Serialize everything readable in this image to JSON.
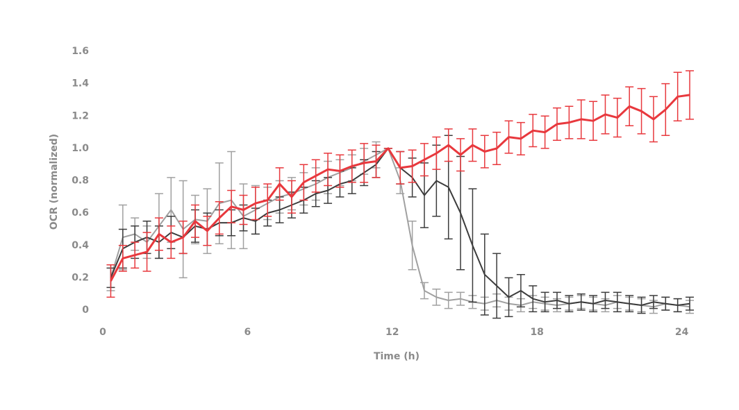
{
  "chart_data": {
    "type": "line",
    "xlabel": "Time (h)",
    "ylabel": "OCR (normalized)",
    "x": [
      0.33,
      0.83,
      1.33,
      1.83,
      2.33,
      2.83,
      3.33,
      3.83,
      4.33,
      4.83,
      5.33,
      5.83,
      6.33,
      6.83,
      7.33,
      7.83,
      8.33,
      8.83,
      9.33,
      9.83,
      10.33,
      10.83,
      11.33,
      11.83,
      12.33,
      12.83,
      13.33,
      13.83,
      14.33,
      14.83,
      15.33,
      15.83,
      16.33,
      16.83,
      17.33,
      17.83,
      18.33,
      18.83,
      19.33,
      19.83,
      20.33,
      20.83,
      21.33,
      21.83,
      22.33,
      22.83,
      23.33,
      23.83,
      24.33
    ],
    "series": [
      {
        "color": "#a0a0a0",
        "width": 2,
        "values": [
          0.2,
          0.45,
          0.47,
          0.42,
          0.52,
          0.62,
          0.5,
          0.56,
          0.55,
          0.66,
          0.68,
          0.58,
          0.62,
          0.66,
          0.7,
          0.72,
          0.75,
          0.78,
          0.82,
          0.85,
          0.88,
          0.92,
          0.96,
          1.0,
          0.8,
          0.4,
          0.12,
          0.08,
          0.06,
          0.07,
          0.05,
          0.04,
          0.06,
          0.04,
          0.03,
          0.05,
          0.04,
          0.03,
          0.04,
          0.05,
          0.04,
          0.03,
          0.05,
          0.04,
          0.03,
          0.02,
          0.04,
          0.03,
          0.02
        ],
        "errors": [
          0.08,
          0.2,
          0.1,
          0.1,
          0.2,
          0.2,
          0.3,
          0.15,
          0.2,
          0.25,
          0.3,
          0.2,
          0.15,
          0.1,
          0.1,
          0.1,
          0.1,
          0.1,
          0.1,
          0.08,
          0.08,
          0.08,
          0.08,
          0,
          0.08,
          0.15,
          0.05,
          0.05,
          0.05,
          0.04,
          0.04,
          0.04,
          0.04,
          0.04,
          0.04,
          0.04,
          0.04,
          0.04,
          0.04,
          0.04,
          0.04,
          0.04,
          0.04,
          0.04,
          0.04,
          0.04,
          0.04,
          0.04,
          0.04
        ]
      },
      {
        "color": "#3c3c3c",
        "width": 2,
        "values": [
          0.2,
          0.38,
          0.42,
          0.45,
          0.42,
          0.48,
          0.45,
          0.52,
          0.5,
          0.54,
          0.54,
          0.57,
          0.55,
          0.6,
          0.62,
          0.65,
          0.68,
          0.72,
          0.74,
          0.78,
          0.8,
          0.85,
          0.9,
          1.0,
          0.88,
          0.82,
          0.71,
          0.8,
          0.76,
          0.6,
          0.4,
          0.22,
          0.15,
          0.08,
          0.12,
          0.07,
          0.05,
          0.06,
          0.04,
          0.05,
          0.04,
          0.06,
          0.05,
          0.04,
          0.03,
          0.05,
          0.04,
          0.03,
          0.04
        ],
        "errors": [
          0.06,
          0.12,
          0.1,
          0.1,
          0.1,
          0.1,
          0.1,
          0.1,
          0.1,
          0.08,
          0.08,
          0.08,
          0.08,
          0.08,
          0.08,
          0.08,
          0.08,
          0.08,
          0.08,
          0.08,
          0.08,
          0.08,
          0.08,
          0,
          0.1,
          0.12,
          0.2,
          0.22,
          0.32,
          0.35,
          0.35,
          0.25,
          0.2,
          0.12,
          0.1,
          0.08,
          0.06,
          0.05,
          0.05,
          0.05,
          0.05,
          0.05,
          0.06,
          0.05,
          0.05,
          0.04,
          0.04,
          0.04,
          0.04
        ]
      },
      {
        "color": "#e8383d",
        "width": 3,
        "values": [
          0.18,
          0.32,
          0.34,
          0.36,
          0.47,
          0.42,
          0.45,
          0.55,
          0.49,
          0.57,
          0.64,
          0.62,
          0.66,
          0.68,
          0.78,
          0.7,
          0.79,
          0.83,
          0.87,
          0.86,
          0.89,
          0.91,
          0.92,
          1.0,
          0.88,
          0.89,
          0.93,
          0.97,
          1.02,
          0.96,
          1.02,
          0.98,
          1.0,
          1.07,
          1.06,
          1.11,
          1.1,
          1.15,
          1.16,
          1.18,
          1.17,
          1.21,
          1.19,
          1.26,
          1.23,
          1.18,
          1.24,
          1.32,
          1.33
        ],
        "errors": [
          0.1,
          0.08,
          0.08,
          0.12,
          0.1,
          0.1,
          0.1,
          0.1,
          0.09,
          0.1,
          0.1,
          0.09,
          0.1,
          0.1,
          0.1,
          0.1,
          0.11,
          0.1,
          0.1,
          0.1,
          0.1,
          0.12,
          0.1,
          0,
          0.1,
          0.1,
          0.1,
          0.1,
          0.1,
          0.1,
          0.1,
          0.1,
          0.1,
          0.1,
          0.1,
          0.1,
          0.1,
          0.1,
          0.1,
          0.12,
          0.12,
          0.12,
          0.12,
          0.12,
          0.14,
          0.14,
          0.16,
          0.15,
          0.15
        ]
      }
    ],
    "xlim": [
      0,
      24.3
    ],
    "xticks": [
      0,
      6,
      12,
      18,
      24
    ],
    "ylim": [
      0,
      1.6
    ],
    "yticks": [
      0,
      0.2,
      0.4,
      0.6,
      0.8,
      {
        "value": 1,
        "label": "1.0"
      },
      1.2,
      1.4,
      1.6
    ],
    "grid": false
  }
}
